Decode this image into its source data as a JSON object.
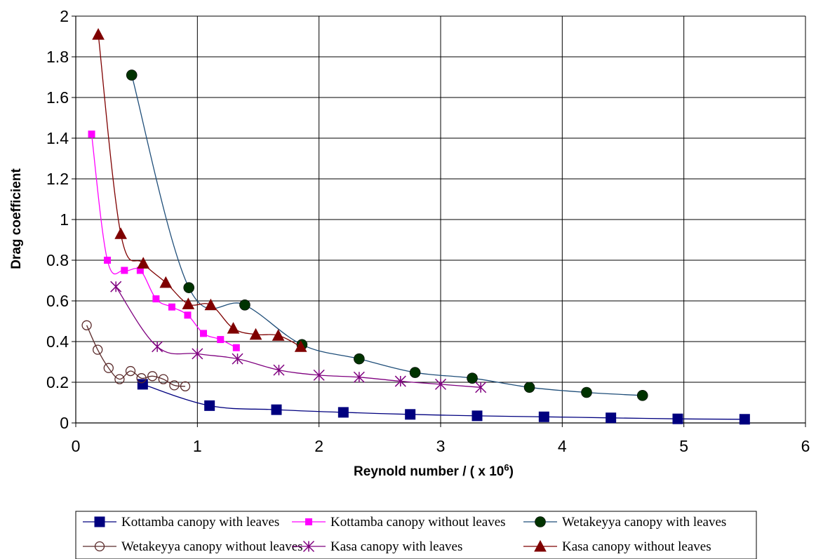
{
  "chart_data": {
    "type": "line",
    "xlabel": "Reynold number / ( x 10",
    "xlabel_superscript": "6",
    "xlabel_suffix": ")",
    "ylabel": "Drag coefficient",
    "xlim": [
      0,
      6
    ],
    "ylim": [
      0,
      2
    ],
    "x_ticks": [
      "0",
      "1",
      "2",
      "3",
      "4",
      "5",
      "6"
    ],
    "y_ticks": [
      "0",
      "0.2",
      "0.4",
      "0.6",
      "0.8",
      "1",
      "1.2",
      "1.4",
      "1.6",
      "1.8",
      "2"
    ],
    "grid": true,
    "legend_position": "bottom",
    "series": [
      {
        "name": "Kottamba canopy with leaves",
        "color": "#00007f",
        "marker": "square",
        "x": [
          0.55,
          1.1,
          1.65,
          2.2,
          2.75,
          3.3,
          3.85,
          4.4,
          4.95,
          5.5
        ],
        "y": [
          0.19,
          0.085,
          0.065,
          0.052,
          0.042,
          0.035,
          0.03,
          0.025,
          0.02,
          0.018
        ]
      },
      {
        "name": "Kottamba canopy without leaves",
        "color": "#ff00ff",
        "marker": "small-square",
        "x": [
          0.13,
          0.26,
          0.4,
          0.53,
          0.66,
          0.79,
          0.92,
          1.05,
          1.19,
          1.32
        ],
        "y": [
          1.42,
          0.8,
          0.75,
          0.75,
          0.61,
          0.57,
          0.53,
          0.44,
          0.41,
          0.37
        ]
      },
      {
        "name": "Wetakeyya canopy with leaves",
        "color": "#003300",
        "line_color": "#1f4e79",
        "marker": "circle",
        "x": [
          0.46,
          0.93,
          1.39,
          1.86,
          2.33,
          2.79,
          3.26,
          3.73,
          4.2,
          4.66
        ],
        "y": [
          1.71,
          0.665,
          0.58,
          0.385,
          0.315,
          0.248,
          0.22,
          0.175,
          0.15,
          0.135
        ]
      },
      {
        "name": "Wetakeyya canopy without leaves",
        "color": "#5a2a2a",
        "marker": "open-circle",
        "x": [
          0.09,
          0.18,
          0.27,
          0.36,
          0.45,
          0.54,
          0.63,
          0.72,
          0.81,
          0.9
        ],
        "y": [
          0.48,
          0.36,
          0.27,
          0.215,
          0.255,
          0.22,
          0.23,
          0.215,
          0.185,
          0.18
        ]
      },
      {
        "name": "Kasa canopy with leaves",
        "color": "#7f007f",
        "marker": "star",
        "x": [
          0.33,
          0.67,
          1.0,
          1.33,
          1.67,
          2.0,
          2.33,
          2.67,
          3.0,
          3.33
        ],
        "y": [
          0.67,
          0.375,
          0.34,
          0.315,
          0.26,
          0.235,
          0.225,
          0.205,
          0.19,
          0.175
        ]
      },
      {
        "name": "Kasa canopy without leaves",
        "color": "#7f0000",
        "marker": "triangle",
        "x": [
          0.185,
          0.37,
          0.555,
          0.74,
          0.925,
          1.11,
          1.295,
          1.48,
          1.665,
          1.85
        ],
        "y": [
          1.91,
          0.93,
          0.785,
          0.69,
          0.585,
          0.58,
          0.465,
          0.435,
          0.43,
          0.375
        ]
      }
    ]
  }
}
